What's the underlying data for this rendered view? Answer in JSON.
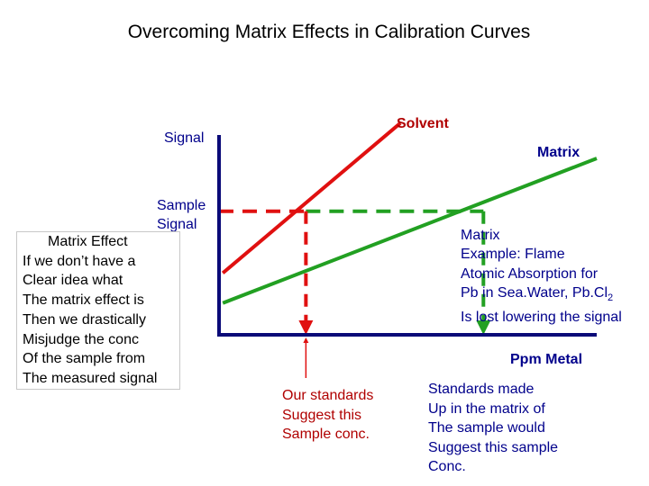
{
  "title": "Overcoming Matrix Effects in Calibration Curves",
  "colors": {
    "solvent": "#e01010",
    "matrix": "#22a022",
    "axis": "#0a0a78",
    "text_red": "#b00000",
    "text_blue": "#00008b"
  },
  "chart_data": {
    "type": "line",
    "xlabel": "Ppm Metal",
    "ylabel": "Signal",
    "xlim": [
      0,
      10
    ],
    "ylim": [
      0,
      10
    ],
    "series": [
      {
        "name": "Solvent",
        "color": "#e01010",
        "x": [
          0.1,
          4.8
        ],
        "y": [
          3.5,
          12.0
        ]
      },
      {
        "name": "Matrix",
        "color": "#22a022",
        "x": [
          0.1,
          10.0
        ],
        "y": [
          1.8,
          10.0
        ]
      }
    ],
    "sample_signal_y": 7.0,
    "intersections": [
      {
        "series": "Solvent",
        "x": 2.3,
        "label": "Our standards Suggest this Sample conc."
      },
      {
        "series": "Matrix",
        "x": 7.0,
        "label": "Standards made Up in the matrix of The sample would Suggest this sample Conc."
      }
    ]
  },
  "labels": {
    "signal": "Signal",
    "solvent": "Solvent",
    "matrix": "Matrix",
    "sample_signal": [
      "Sample",
      "Signal"
    ],
    "ppm_metal": "Ppm Metal",
    "matrix_effect": [
      "Matrix Effect",
      "If we don’t have a",
      "Clear idea what",
      "The matrix effect is",
      "Then we drastically",
      "Misjudge the conc",
      "Of the sample from",
      "The measured signal"
    ],
    "matrix_example": {
      "lines": [
        "Matrix",
        "Example:  Flame",
        "Atomic Absorption for",
        "Pb in Sea.Water, Pb.Cl"
      ],
      "subscript": "2",
      "last": "Is lost lowering the signal"
    },
    "our_standards": [
      "Our standards",
      "Suggest this",
      "Sample conc."
    ],
    "standards_made": [
      "Standards made",
      "Up in the matrix of",
      "The sample would",
      "Suggest this sample",
      "Conc."
    ]
  }
}
